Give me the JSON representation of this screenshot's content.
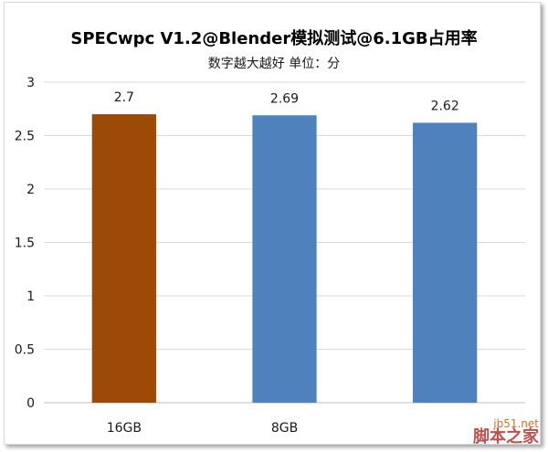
{
  "chart_data": {
    "type": "bar",
    "title": "SPECwpc V1.2@Blender模拟测试@6.1GB占用率",
    "subtitle": "数字越大越好 单位：分",
    "categories": [
      "16GB",
      "8GB",
      ""
    ],
    "values": [
      2.7,
      2.69,
      2.62
    ],
    "data_labels": [
      "2.7",
      "2.69",
      "2.62"
    ],
    "bar_colors": [
      "#9C4A06",
      "#4F81BD",
      "#4F81BD"
    ],
    "ylim": [
      0,
      3
    ],
    "yticks": [
      0,
      0.5,
      1,
      1.5,
      2,
      2.5,
      3
    ],
    "ytick_labels": [
      "0",
      "0.5",
      "1",
      "1.5",
      "2",
      "2.5",
      "3"
    ],
    "grid": true,
    "gridline_color": "#d9d9d9",
    "legend": "none"
  },
  "watermark": {
    "url": "jb51.net",
    "name": "脚本之家"
  }
}
